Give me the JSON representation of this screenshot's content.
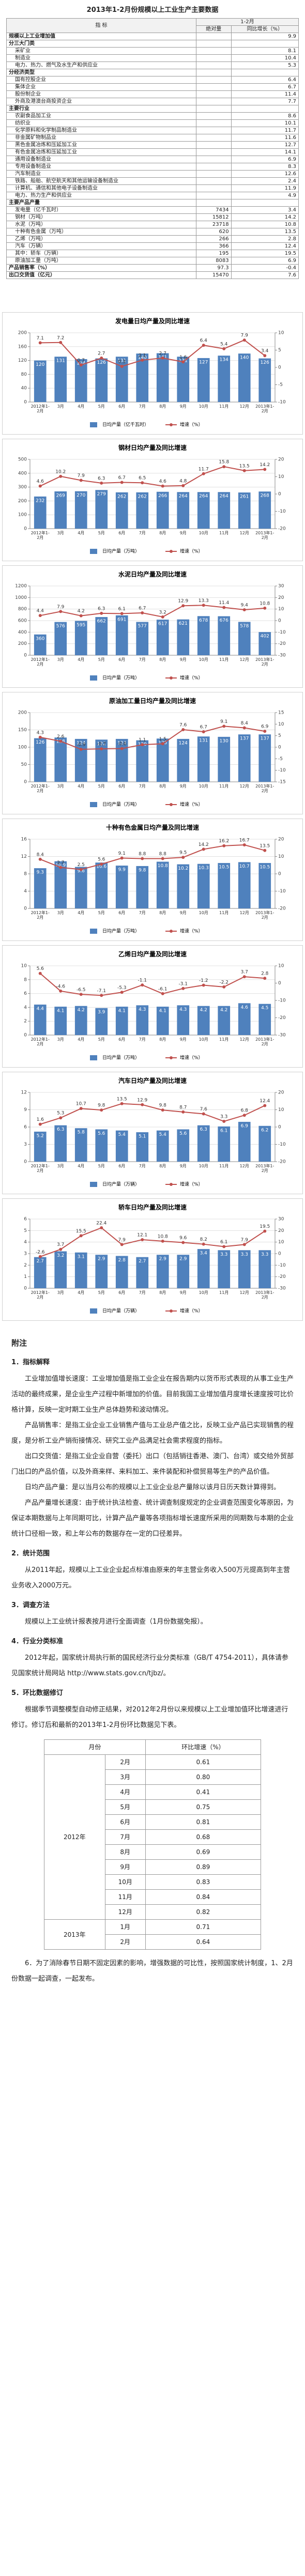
{
  "header": {
    "title": "2013年1-2月份规模以上工业生产主要数据"
  },
  "table": {
    "headers": {
      "indicator": "指 标",
      "period": "1-2月",
      "amount": "绝对量",
      "growth": "同比增长（%）"
    },
    "top": {
      "label": "规模以上工业增加值",
      "growth": 9.9
    },
    "groups": [
      {
        "title": "分三大门类",
        "rows": [
          {
            "label": "采矿业",
            "growth": 8.1
          },
          {
            "label": "制造业",
            "growth": 10.4
          },
          {
            "label": "电力、热力、燃气及水生产和供应业",
            "growth": 5.3
          }
        ]
      },
      {
        "title": "分经济类型",
        "rows": [
          {
            "label": "国有控股企业",
            "growth": 6.4
          },
          {
            "label": "集体企业",
            "growth": 6.7
          },
          {
            "label": "股份制企业",
            "growth": 11.4
          },
          {
            "label": "外商及港澳台商投资企业",
            "growth": 7.7
          }
        ]
      },
      {
        "title": "主要行业",
        "rows": [
          {
            "label": "农副食品加工业",
            "growth": 8.6
          },
          {
            "label": "纺织业",
            "growth": 10.1
          },
          {
            "label": "化学原料和化学制品制造业",
            "growth": 11.7
          },
          {
            "label": "非金属矿物制品业",
            "growth": 11.6
          },
          {
            "label": "黑色金属冶炼和压延加工业",
            "growth": 12.7
          },
          {
            "label": "有色金属冶炼和压延加工业",
            "growth": 14.1
          },
          {
            "label": "通用设备制造业",
            "growth": 6.9
          },
          {
            "label": "专用设备制造业",
            "growth": 8.3
          },
          {
            "label": "汽车制造业",
            "growth": 12.6
          },
          {
            "label": "铁路、船舶、航空航天和其他运输设备制造业",
            "growth": 2.4
          },
          {
            "label": "计算机、通信和其他电子设备制造业",
            "growth": 11.9
          },
          {
            "label": "电力、热力生产和供应业",
            "growth": 4.9
          }
        ]
      },
      {
        "title": "主要产品产量",
        "rows": [
          {
            "label": "发电量（亿千瓦时）",
            "amount": 7434,
            "growth": 3.4
          },
          {
            "label": "钢材（万吨）",
            "amount": 15812,
            "growth": 14.2
          },
          {
            "label": "水泥（万吨）",
            "amount": 23718,
            "growth": 10.8
          },
          {
            "label": "十种有色金属（万吨）",
            "amount": 620,
            "growth": 13.5
          },
          {
            "label": "乙烯（万吨）",
            "amount": 266,
            "growth": 2.8
          },
          {
            "label": "汽车（万辆）",
            "amount": 366,
            "growth": 12.4
          },
          {
            "label": "其中：轿车（万辆）",
            "amount": 195,
            "growth": 19.5
          },
          {
            "label": "原油加工量（万吨）",
            "amount": 8083,
            "growth": 6.9
          }
        ]
      }
    ],
    "bottom": [
      {
        "label": "产品销售率（%）",
        "amount": 97.3,
        "growth": -0.4
      },
      {
        "label": "出口交货值（亿元）",
        "amount": 15470,
        "growth": 7.6
      }
    ]
  },
  "chart_data": [
    {
      "type": "bar",
      "title": "发电量日均产量及同比增速",
      "categories": [
        "2012年1-2月",
        "3月",
        "4月",
        "5月",
        "6月",
        "7月",
        "8月",
        "9月",
        "10月",
        "11月",
        "12月",
        "2013年1-2月"
      ],
      "series": [
        {
          "name": "日均产量（亿千瓦时）",
          "type": "bar",
          "color": "#4f81bd",
          "values": [
            120,
            131,
            124,
            126,
            131,
            140,
            141,
            131,
            127,
            134,
            140,
            126
          ]
        },
        {
          "name": "增速（%）",
          "type": "line",
          "axis": "y2",
          "color": "#c0504d",
          "values": [
            7.1,
            7.2,
            0.7,
            2.7,
            0.3,
            2.1,
            2.7,
            1.6,
            6.4,
            5.4,
            7.9,
            3.4
          ]
        }
      ],
      "ylim": [
        0,
        200
      ],
      "yticks": [
        0,
        40,
        80,
        120,
        160,
        200
      ],
      "y2lim": [
        -10,
        10
      ],
      "y2ticks": [
        -10,
        -5,
        0,
        5,
        10
      ],
      "grid": true
    },
    {
      "type": "bar",
      "title": "钢材日均产量及同比增速",
      "categories": [
        "2012年1-2月",
        "3月",
        "4月",
        "5月",
        "6月",
        "7月",
        "8月",
        "9月",
        "10月",
        "11月",
        "12月",
        "2013年1-2月"
      ],
      "series": [
        {
          "name": "日均产量（万吨）",
          "type": "bar",
          "color": "#4f81bd",
          "values": [
            232,
            269,
            270,
            279,
            262,
            262,
            266,
            264,
            264,
            264,
            261,
            268
          ]
        },
        {
          "name": "增速（%）",
          "type": "line",
          "axis": "y2",
          "color": "#c0504d",
          "values": [
            4.6,
            10.2,
            7.9,
            6.3,
            6.7,
            6.5,
            4.6,
            4.8,
            11.7,
            15.8,
            13.5,
            14.2
          ]
        }
      ],
      "ylim": [
        0,
        500
      ],
      "yticks": [
        0,
        100,
        200,
        300,
        400,
        500
      ],
      "y2lim": [
        -20,
        20
      ],
      "y2ticks": [
        -20,
        -10,
        0,
        10,
        20
      ],
      "grid": true
    },
    {
      "type": "bar",
      "title": "水泥日均产量及同比增速",
      "categories": [
        "2012年1-2月",
        "3月",
        "4月",
        "5月",
        "6月",
        "7月",
        "8月",
        "9月",
        "10月",
        "11月",
        "12月",
        "2013年1-2月"
      ],
      "series": [
        {
          "name": "日均产量（万吨）",
          "type": "bar",
          "color": "#4f81bd",
          "values": [
            360,
            576,
            595,
            662,
            691,
            577,
            617,
            621,
            678,
            676,
            578,
            402
          ]
        },
        {
          "name": "增速（%）",
          "type": "line",
          "axis": "y2",
          "color": "#c0504d",
          "values": [
            4.4,
            7.9,
            4.2,
            6.3,
            6.1,
            6.7,
            3.2,
            12.9,
            13.3,
            11.4,
            9.4,
            10.8
          ]
        }
      ],
      "ylim": [
        0,
        1200
      ],
      "yticks": [
        0,
        200,
        400,
        600,
        800,
        1000,
        1200
      ],
      "y2lim": [
        -30,
        30
      ],
      "y2ticks": [
        -30,
        -20,
        -10,
        0,
        10,
        20,
        30
      ],
      "grid": true
    },
    {
      "type": "bar",
      "title": "原油加工量日均产量及同比增速",
      "categories": [
        "2012年1-2月",
        "3月",
        "4月",
        "5月",
        "6月",
        "7月",
        "8月",
        "9月",
        "10月",
        "11月",
        "12月",
        "2013年1-2月"
      ],
      "series": [
        {
          "name": "日均产量（万吨）",
          "type": "bar",
          "color": "#4f81bd",
          "values": [
            126,
            128,
            124,
            122,
            124,
            120,
            125,
            124,
            131,
            130,
            137,
            137
          ]
        },
        {
          "name": "增速（%）",
          "type": "line",
          "axis": "y2",
          "color": "#c0504d",
          "values": [
            4.3,
            2.6,
            -0.9,
            -0.7,
            -0.6,
            1.1,
            1.5,
            7.6,
            6.7,
            9.1,
            8.4,
            6.9
          ]
        }
      ],
      "ylim": [
        0,
        200
      ],
      "yticks": [
        0,
        50,
        100,
        150,
        200
      ],
      "y2lim": [
        -15,
        15
      ],
      "y2ticks": [
        -15,
        -10,
        -5,
        0,
        5,
        10,
        15
      ],
      "grid": true
    },
    {
      "type": "bar",
      "title": "十种有色金属日均产量及同比增速",
      "categories": [
        "2012年1-2月",
        "3月",
        "4月",
        "5月",
        "6月",
        "7月",
        "8月",
        "9月",
        "10月",
        "11月",
        "12月",
        "2013年1-2月"
      ],
      "series": [
        {
          "name": "日均产量（万吨）",
          "type": "bar",
          "color": "#4f81bd",
          "values": [
            9.3,
            10.9,
            9.6,
            10.6,
            9.9,
            9.8,
            10.8,
            10.2,
            10.3,
            10.5,
            10.7,
            10.5
          ]
        },
        {
          "name": "增速（%）",
          "type": "line",
          "axis": "y2",
          "color": "#c0504d",
          "values": [
            8.4,
            3.7,
            2.5,
            5.6,
            9.1,
            8.8,
            8.8,
            9.5,
            14.2,
            16.2,
            16.7,
            13.5
          ]
        }
      ],
      "ylim": [
        0,
        16
      ],
      "yticks": [
        0,
        4,
        8,
        12,
        16
      ],
      "y2lim": [
        -20,
        20
      ],
      "y2ticks": [
        -20,
        -10,
        0,
        10,
        20
      ],
      "grid": true
    },
    {
      "type": "bar",
      "title": "乙烯日均产量及同比增速",
      "categories": [
        "2012年1-2月",
        "3月",
        "4月",
        "5月",
        "6月",
        "7月",
        "8月",
        "9月",
        "10月",
        "11月",
        "12月",
        "2013年1-2月"
      ],
      "series": [
        {
          "name": "日均产量（万吨）",
          "type": "bar",
          "color": "#4f81bd",
          "values": [
            4.4,
            4.1,
            4.2,
            3.9,
            4.1,
            4.3,
            4.1,
            4.3,
            4.2,
            4.2,
            4.6,
            4.5
          ]
        },
        {
          "name": "增速（%）",
          "type": "line",
          "axis": "y2",
          "color": "#c0504d",
          "values": [
            5.6,
            -4.6,
            -6.5,
            -7.1,
            -5.3,
            -1.1,
            -6.1,
            -3.1,
            -1.2,
            -2.2,
            3.7,
            2.8
          ]
        }
      ],
      "ylim": [
        0,
        10
      ],
      "yticks": [
        0,
        2,
        4,
        6,
        8,
        10
      ],
      "y2lim": [
        -30,
        10
      ],
      "y2ticks": [
        -30,
        -20,
        -10,
        0,
        10
      ],
      "grid": true
    },
    {
      "type": "bar",
      "title": "汽车日均产量及同比增速",
      "categories": [
        "2012年1-2月",
        "3月",
        "4月",
        "5月",
        "6月",
        "7月",
        "8月",
        "9月",
        "10月",
        "11月",
        "12月",
        "2013年1-2月"
      ],
      "series": [
        {
          "name": "日均产量（万辆）",
          "type": "bar",
          "color": "#4f81bd",
          "values": [
            5.2,
            6.3,
            5.8,
            5.6,
            5.4,
            5.1,
            5.4,
            5.6,
            6.3,
            6.1,
            6.9,
            6.2
          ]
        },
        {
          "name": "增速（%）",
          "type": "line",
          "axis": "y2",
          "color": "#c0504d",
          "values": [
            1.6,
            5.3,
            10.7,
            9.8,
            13.5,
            12.9,
            9.8,
            8.7,
            7.6,
            3.3,
            6.8,
            12.4
          ]
        }
      ],
      "ylim": [
        0,
        12
      ],
      "yticks": [
        0,
        3,
        6,
        9,
        12
      ],
      "y2lim": [
        -20,
        20
      ],
      "y2ticks": [
        -20,
        -10,
        0,
        10,
        20
      ],
      "grid": true
    },
    {
      "type": "bar",
      "title": "轿车日均产量及同比增速",
      "categories": [
        "2012年1-2月",
        "3月",
        "4月",
        "5月",
        "6月",
        "7月",
        "8月",
        "9月",
        "10月",
        "11月",
        "12月",
        "2013年1-2月"
      ],
      "series": [
        {
          "name": "日均产量（万辆）",
          "type": "bar",
          "color": "#4f81bd",
          "values": [
            2.7,
            3.2,
            3.1,
            2.9,
            2.8,
            2.7,
            2.9,
            2.9,
            3.4,
            3.3,
            3.3,
            3.3
          ]
        },
        {
          "name": "增速（%）",
          "type": "line",
          "axis": "y2",
          "color": "#c0504d",
          "values": [
            -2.6,
            3.7,
            15.5,
            22.4,
            7.9,
            12.1,
            10.8,
            9.6,
            8.2,
            6.1,
            7.9,
            19.5
          ]
        }
      ],
      "ylim": [
        0,
        6
      ],
      "yticks": [
        0,
        1,
        2,
        3,
        4,
        5,
        6
      ],
      "y2lim": [
        -30,
        30
      ],
      "y2ticks": [
        -30,
        -20,
        -10,
        0,
        10,
        20,
        30
      ],
      "grid": true
    }
  ],
  "notes": {
    "title": "附注",
    "sections": [
      {
        "heading": "1．指标解释",
        "paragraphs": [
          "工业增加值增长速度：工业增加值是指工业企业在报告期内以货币形式表现的从事工业生产活动的最终成果，是企业生产过程中新增加的价值。目前我国工业增加值月度增长速度按可比价格计算，反映一定时期工业生产总体趋势和波动情况。",
          "产品销售率：是指工业企业工业销售产值与工业总产值之比，反映工业产品已实现销售的程度，是分析工业产销衔接情况、研究工业产品满足社会需求程度的指标。",
          "出口交货值：是指工业企业自营（委托）出口（包括销往香港、澳门、台湾）或交给外贸部门出口的产品价值，以及外商来样、来料加工、来件装配和补偿贸易等生产的产品价值。",
          "日均产品产量：是以当月公布的规模以上工业企业总产量除以该月日历天数计算得到。",
          "产品产量增长速度：由于统计执法检查、统计调查制度规定的企业调查范围变化等原因，为保证本期数据与上年同期可比，计算产品产量等各项指标增长速度所采用的同期数与本期的企业统计口径相一致，和上年公布的数据存在一定的口径差异。"
        ]
      },
      {
        "heading": "2．统计范围",
        "paragraphs": [
          "从2011年起，规模以上工业企业起点标准由原来的年主营业务收入500万元提高到年主营业务收入2000万元。"
        ]
      },
      {
        "heading": "3．调查方法",
        "paragraphs": [
          "规模以上工业统计报表按月进行全面调查（1月份数据免报）。"
        ]
      },
      {
        "heading": "4．行业分类标准",
        "paragraphs": [
          "2012年起，国家统计局执行新的国民经济行业分类标准（GB/T 4754-2011），具体请参见国家统计局网站 http://www.stats.gov.cn/tjbz/。"
        ]
      },
      {
        "heading": "5．环比数据修订",
        "paragraphs": [
          "根据季节调整模型自动修正结果，对2012年2月份以来规模以上工业增加值环比增速进行修订。修订后和最新的2013年1-2月份环比数据见下表。"
        ]
      }
    ],
    "revision": {
      "headers": {
        "month": "月份",
        "value": "环比增速（%）"
      },
      "years": [
        {
          "year": "2012年",
          "rows": [
            {
              "month": "2月",
              "value": "0.61"
            },
            {
              "month": "3月",
              "value": "0.80"
            },
            {
              "month": "4月",
              "value": "0.41"
            },
            {
              "month": "5月",
              "value": "0.75"
            },
            {
              "month": "6月",
              "value": "0.81"
            },
            {
              "month": "7月",
              "value": "0.68"
            },
            {
              "month": "8月",
              "value": "0.69"
            },
            {
              "month": "9月",
              "value": "0.89"
            },
            {
              "month": "10月",
              "value": "0.83"
            },
            {
              "month": "11月",
              "value": "0.84"
            },
            {
              "month": "12月",
              "value": "0.82"
            }
          ]
        },
        {
          "year": "2013年",
          "rows": [
            {
              "month": "1月",
              "value": "0.71"
            },
            {
              "month": "2月",
              "value": "0.64"
            }
          ]
        }
      ]
    },
    "final": "6．为了消除春节日期不固定因素的影响，增强数据的可比性，按照国家统计制度，1、2月份数据一起调查，一起发布。"
  }
}
